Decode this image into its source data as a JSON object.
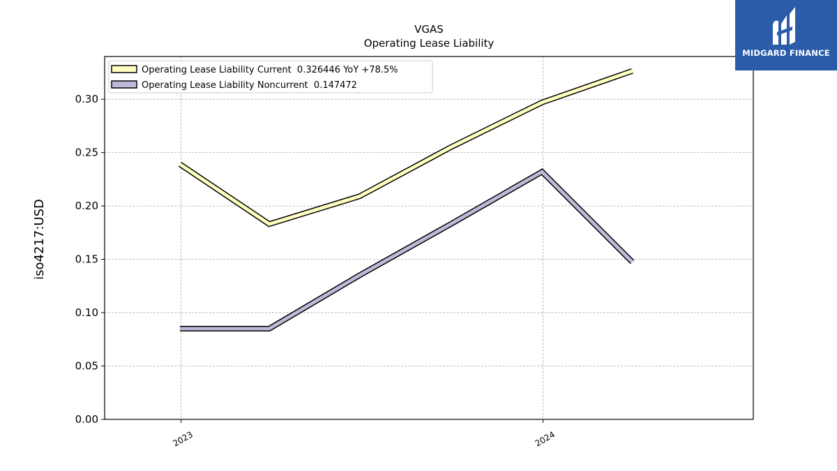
{
  "chart_data": {
    "type": "line",
    "title": "VGAS",
    "subtitle": "Operating Lease Liability",
    "ylabel": "iso4217:USD",
    "xlabel": "",
    "ylim": [
      0,
      0.34
    ],
    "yticks": [
      0.0,
      0.05,
      0.1,
      0.15,
      0.2,
      0.25,
      0.3
    ],
    "ytick_labels": [
      "0.00",
      "0.05",
      "0.10",
      "0.15",
      "0.20",
      "0.25",
      "0.30"
    ],
    "xlim": [
      "2022-10-16",
      "2024-07-31"
    ],
    "xticks": [
      "2023-01-01",
      "2024-01-01"
    ],
    "xtick_labels": [
      "2023",
      "2024"
    ],
    "grid": true,
    "legend_position": "top-left",
    "x": [
      "2022-12-31",
      "2023-03-31",
      "2023-06-30",
      "2023-09-30",
      "2023-12-31",
      "2024-03-31"
    ],
    "series": [
      {
        "name": "Operating Lease Liability Current",
        "legend_label": "Operating Lease Liability Current  0.326446 YoY +78.5%",
        "color": "#ffffc0",
        "values": [
          0.239,
          0.183,
          0.209,
          0.255,
          0.297,
          0.326446
        ]
      },
      {
        "name": "Operating Lease Liability Noncurrent",
        "legend_label": "Operating Lease Liability Noncurrent  0.147472",
        "color": "#bcbad8",
        "values": [
          0.085,
          0.085,
          0.135,
          0.183,
          0.232,
          0.147472
        ]
      }
    ]
  },
  "logo": {
    "text": "MIDGARD FINANCE",
    "color": "#2a5caa"
  }
}
